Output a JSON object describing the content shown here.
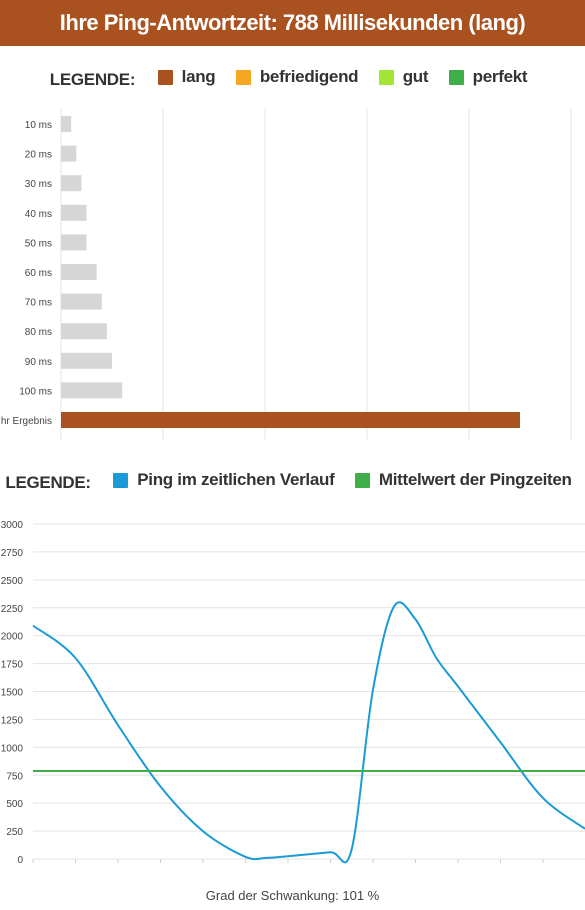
{
  "header": {
    "title": "Ihre Ping-Antwortzeit: 788 Millisekunden (lang)"
  },
  "legend1": {
    "label": "LEGENDE:",
    "items": [
      {
        "name": "lang",
        "color": "#a9511f"
      },
      {
        "name": "befriedigend",
        "color": "#f5a623"
      },
      {
        "name": "gut",
        "color": "#a3e635"
      },
      {
        "name": "perfekt",
        "color": "#3fae49"
      }
    ]
  },
  "legend2": {
    "label": "LEGENDE:",
    "items": [
      {
        "name": "Ping im zeitlichen Verlauf",
        "color": "#1a9ad6"
      },
      {
        "name": "Mittelwert der Pingzeiten",
        "color": "#3fae49"
      }
    ]
  },
  "chart_data": [
    {
      "type": "bar",
      "orientation": "horizontal",
      "categories": [
        "10 ms",
        "20 ms",
        "30 ms",
        "40 ms",
        "50 ms",
        "60 ms",
        "70 ms",
        "80 ms",
        "90 ms",
        "100 ms",
        "Ihr Ergebnis"
      ],
      "values": [
        10,
        15,
        20,
        25,
        25,
        35,
        40,
        45,
        50,
        60,
        450
      ],
      "bar_colors": [
        "#d6d6d6",
        "#d6d6d6",
        "#d6d6d6",
        "#d6d6d6",
        "#d6d6d6",
        "#d6d6d6",
        "#d6d6d6",
        "#d6d6d6",
        "#d6d6d6",
        "#d6d6d6",
        "#a9511f"
      ],
      "xlim": [
        0,
        500
      ],
      "grid": true
    },
    {
      "type": "line",
      "yticks": [
        0,
        250,
        500,
        750,
        1000,
        1250,
        1500,
        1750,
        2000,
        2250,
        2500,
        2750,
        3000
      ],
      "ylim": [
        0,
        3000
      ],
      "xlim": [
        0,
        26
      ],
      "series": [
        {
          "name": "Ping im zeitlichen Verlauf",
          "color": "#1a9ad6",
          "x": [
            0,
            2,
            4,
            6,
            8,
            10,
            11,
            12,
            14,
            15,
            16,
            17,
            18,
            19,
            20,
            22,
            24,
            26
          ],
          "y": [
            2090,
            1800,
            1200,
            650,
            250,
            20,
            10,
            25,
            60,
            80,
            1500,
            2260,
            2150,
            1800,
            1550,
            1050,
            550,
            270
          ]
        },
        {
          "name": "Mittelwert der Pingzeiten",
          "color": "#3fae49",
          "x": [
            0,
            26
          ],
          "y": [
            788,
            788
          ]
        }
      ],
      "grid": true
    }
  ],
  "footer": {
    "text": "Grad der Schwankung: 101 %"
  }
}
